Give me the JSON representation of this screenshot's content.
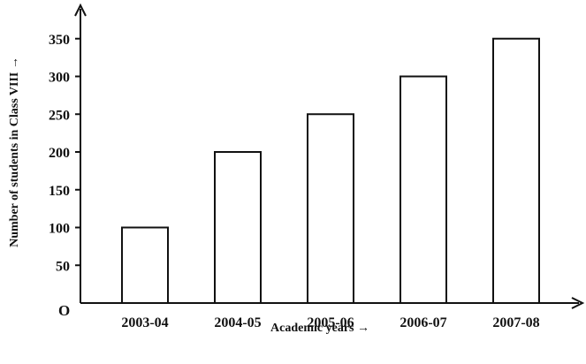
{
  "chart_data": {
    "type": "bar",
    "categories": [
      "2003-04",
      "2004-05",
      "2005-06",
      "2006-07",
      "2007-08"
    ],
    "values": [
      100,
      200,
      250,
      300,
      350
    ],
    "title": "",
    "xlabel": "Academic years →",
    "ylabel": "Number of students in Class VIII →",
    "origin_label": "O",
    "yticks": [
      50,
      100,
      150,
      200,
      250,
      300,
      350
    ],
    "ylim": [
      0,
      400
    ],
    "grid": false,
    "legend": "none",
    "bar_fill": "#ffffff",
    "bar_stroke": "#111111"
  }
}
